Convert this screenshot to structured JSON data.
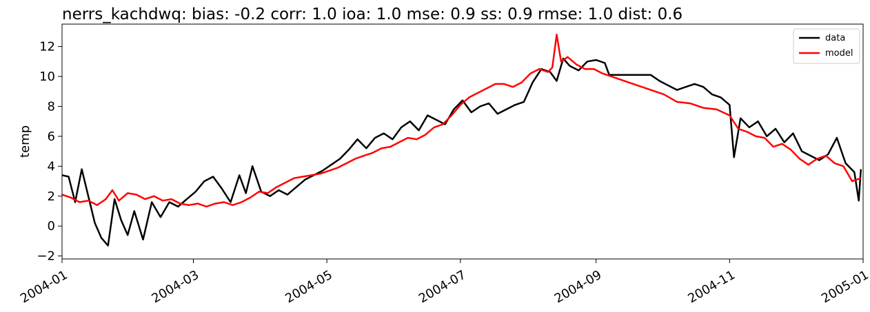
{
  "chart_data": {
    "type": "line",
    "title": "nerrs_kachdwq: bias: -0.2  corr: 1.0  ioa: 1.0  mse: 0.9  ss: 0.9  rmse: 1.0  dist: 0.6",
    "xlabel": "",
    "ylabel": "temp",
    "xlim": [
      "2004-01-01",
      "2005-01-01"
    ],
    "ylim": [
      -2.2,
      13.5
    ],
    "x_ticks": [
      "2004-01",
      "2004-03",
      "2004-05",
      "2004-07",
      "2004-09",
      "2004-11",
      "2005-01"
    ],
    "y_ticks": [
      -2,
      0,
      2,
      4,
      6,
      8,
      10,
      12
    ],
    "grid": false,
    "legend": {
      "position": "top-right"
    },
    "series": [
      {
        "name": "data",
        "color": "#000000",
        "points": [
          [
            "2004-01-01",
            3.4
          ],
          [
            "2004-01-04",
            3.3
          ],
          [
            "2004-01-07",
            1.6
          ],
          [
            "2004-01-10",
            3.8
          ],
          [
            "2004-01-13",
            2.0
          ],
          [
            "2004-01-16",
            0.2
          ],
          [
            "2004-01-19",
            -0.8
          ],
          [
            "2004-01-22",
            -1.3
          ],
          [
            "2004-01-25",
            1.8
          ],
          [
            "2004-01-28",
            0.4
          ],
          [
            "2004-01-31",
            -0.6
          ],
          [
            "2004-02-03",
            1.0
          ],
          [
            "2004-02-07",
            -0.9
          ],
          [
            "2004-02-11",
            1.6
          ],
          [
            "2004-02-15",
            0.6
          ],
          [
            "2004-02-19",
            1.6
          ],
          [
            "2004-02-23",
            1.3
          ],
          [
            "2004-02-27",
            1.8
          ],
          [
            "2004-03-02",
            2.3
          ],
          [
            "2004-03-06",
            3.0
          ],
          [
            "2004-03-10",
            3.3
          ],
          [
            "2004-03-14",
            2.5
          ],
          [
            "2004-03-18",
            1.6
          ],
          [
            "2004-03-22",
            3.4
          ],
          [
            "2004-03-25",
            2.2
          ],
          [
            "2004-03-28",
            4.0
          ],
          [
            "2004-04-01",
            2.3
          ],
          [
            "2004-04-05",
            2.0
          ],
          [
            "2004-04-09",
            2.4
          ],
          [
            "2004-04-13",
            2.1
          ],
          [
            "2004-04-17",
            2.6
          ],
          [
            "2004-04-21",
            3.1
          ],
          [
            "2004-04-25",
            3.4
          ],
          [
            "2004-04-29",
            3.7
          ],
          [
            "2004-05-03",
            4.1
          ],
          [
            "2004-05-07",
            4.5
          ],
          [
            "2004-05-11",
            5.1
          ],
          [
            "2004-05-15",
            5.8
          ],
          [
            "2004-05-19",
            5.2
          ],
          [
            "2004-05-23",
            5.9
          ],
          [
            "2004-05-27",
            6.2
          ],
          [
            "2004-05-31",
            5.8
          ],
          [
            "2004-06-04",
            6.6
          ],
          [
            "2004-06-08",
            7.0
          ],
          [
            "2004-06-12",
            6.4
          ],
          [
            "2004-06-16",
            7.4
          ],
          [
            "2004-06-20",
            7.1
          ],
          [
            "2004-06-24",
            6.8
          ],
          [
            "2004-06-28",
            7.8
          ],
          [
            "2004-07-02",
            8.4
          ],
          [
            "2004-07-06",
            7.6
          ],
          [
            "2004-07-10",
            8.0
          ],
          [
            "2004-07-14",
            8.2
          ],
          [
            "2004-07-18",
            7.5
          ],
          [
            "2004-07-22",
            7.8
          ],
          [
            "2004-07-26",
            8.1
          ],
          [
            "2004-07-30",
            8.3
          ],
          [
            "2004-08-03",
            9.6
          ],
          [
            "2004-08-07",
            10.5
          ],
          [
            "2004-08-11",
            10.3
          ],
          [
            "2004-08-14",
            9.7
          ],
          [
            "2004-08-17",
            11.2
          ],
          [
            "2004-08-20",
            10.7
          ],
          [
            "2004-08-24",
            10.4
          ],
          [
            "2004-08-28",
            11.0
          ],
          [
            "2004-09-01",
            11.1
          ],
          [
            "2004-09-05",
            10.9
          ],
          [
            "2004-09-07",
            10.1
          ],
          [
            "2004-09-26",
            10.1
          ],
          [
            "2004-09-30",
            9.7
          ],
          [
            "2004-10-04",
            9.4
          ],
          [
            "2004-10-08",
            9.1
          ],
          [
            "2004-10-12",
            9.3
          ],
          [
            "2004-10-16",
            9.5
          ],
          [
            "2004-10-20",
            9.3
          ],
          [
            "2004-10-24",
            8.8
          ],
          [
            "2004-10-28",
            8.6
          ],
          [
            "2004-11-01",
            8.1
          ],
          [
            "2004-11-03",
            4.6
          ],
          [
            "2004-11-06",
            7.2
          ],
          [
            "2004-11-10",
            6.6
          ],
          [
            "2004-11-14",
            7.0
          ],
          [
            "2004-11-18",
            6.0
          ],
          [
            "2004-11-22",
            6.5
          ],
          [
            "2004-11-26",
            5.6
          ],
          [
            "2004-11-30",
            6.2
          ],
          [
            "2004-12-04",
            5.0
          ],
          [
            "2004-12-08",
            4.7
          ],
          [
            "2004-12-12",
            4.4
          ],
          [
            "2004-12-16",
            4.8
          ],
          [
            "2004-12-20",
            5.9
          ],
          [
            "2004-12-24",
            4.2
          ],
          [
            "2004-12-28",
            3.6
          ],
          [
            "2004-12-30",
            1.7
          ],
          [
            "2004-12-31",
            3.8
          ]
        ]
      },
      {
        "name": "model",
        "color": "#ff0000",
        "points": [
          [
            "2004-01-01",
            2.1
          ],
          [
            "2004-01-05",
            1.9
          ],
          [
            "2004-01-09",
            1.6
          ],
          [
            "2004-01-13",
            1.7
          ],
          [
            "2004-01-17",
            1.4
          ],
          [
            "2004-01-21",
            1.8
          ],
          [
            "2004-01-24",
            2.4
          ],
          [
            "2004-01-27",
            1.7
          ],
          [
            "2004-01-31",
            2.2
          ],
          [
            "2004-02-04",
            2.1
          ],
          [
            "2004-02-08",
            1.8
          ],
          [
            "2004-02-12",
            2.0
          ],
          [
            "2004-02-16",
            1.7
          ],
          [
            "2004-02-20",
            1.8
          ],
          [
            "2004-02-24",
            1.5
          ],
          [
            "2004-02-28",
            1.4
          ],
          [
            "2004-03-03",
            1.5
          ],
          [
            "2004-03-07",
            1.3
          ],
          [
            "2004-03-11",
            1.5
          ],
          [
            "2004-03-15",
            1.6
          ],
          [
            "2004-03-19",
            1.4
          ],
          [
            "2004-03-23",
            1.6
          ],
          [
            "2004-03-27",
            1.9
          ],
          [
            "2004-03-31",
            2.3
          ],
          [
            "2004-04-04",
            2.2
          ],
          [
            "2004-04-08",
            2.6
          ],
          [
            "2004-04-12",
            2.9
          ],
          [
            "2004-04-16",
            3.2
          ],
          [
            "2004-04-20",
            3.3
          ],
          [
            "2004-04-24",
            3.4
          ],
          [
            "2004-04-28",
            3.5
          ],
          [
            "2004-05-02",
            3.7
          ],
          [
            "2004-05-06",
            3.9
          ],
          [
            "2004-05-10",
            4.2
          ],
          [
            "2004-05-14",
            4.5
          ],
          [
            "2004-05-18",
            4.7
          ],
          [
            "2004-05-22",
            4.9
          ],
          [
            "2004-05-26",
            5.2
          ],
          [
            "2004-05-30",
            5.3
          ],
          [
            "2004-06-03",
            5.6
          ],
          [
            "2004-06-07",
            5.9
          ],
          [
            "2004-06-11",
            5.8
          ],
          [
            "2004-06-15",
            6.1
          ],
          [
            "2004-06-19",
            6.6
          ],
          [
            "2004-06-23",
            6.8
          ],
          [
            "2004-06-27",
            7.4
          ],
          [
            "2004-07-01",
            8.1
          ],
          [
            "2004-07-05",
            8.6
          ],
          [
            "2004-07-09",
            8.9
          ],
          [
            "2004-07-13",
            9.2
          ],
          [
            "2004-07-17",
            9.5
          ],
          [
            "2004-07-21",
            9.5
          ],
          [
            "2004-07-25",
            9.3
          ],
          [
            "2004-07-29",
            9.6
          ],
          [
            "2004-08-02",
            10.2
          ],
          [
            "2004-08-06",
            10.5
          ],
          [
            "2004-08-10",
            10.3
          ],
          [
            "2004-08-12",
            10.6
          ],
          [
            "2004-08-14",
            12.8
          ],
          [
            "2004-08-16",
            11.0
          ],
          [
            "2004-08-19",
            11.3
          ],
          [
            "2004-08-23",
            10.8
          ],
          [
            "2004-08-27",
            10.5
          ],
          [
            "2004-08-31",
            10.5
          ],
          [
            "2004-09-04",
            10.2
          ],
          [
            "2004-09-10",
            9.9
          ],
          [
            "2004-09-18",
            9.5
          ],
          [
            "2004-09-26",
            9.1
          ],
          [
            "2004-10-02",
            8.8
          ],
          [
            "2004-10-08",
            8.3
          ],
          [
            "2004-10-14",
            8.2
          ],
          [
            "2004-10-20",
            7.9
          ],
          [
            "2004-10-26",
            7.8
          ],
          [
            "2004-11-01",
            7.4
          ],
          [
            "2004-11-05",
            6.5
          ],
          [
            "2004-11-09",
            6.3
          ],
          [
            "2004-11-13",
            6.0
          ],
          [
            "2004-11-17",
            5.9
          ],
          [
            "2004-11-21",
            5.3
          ],
          [
            "2004-11-25",
            5.5
          ],
          [
            "2004-11-29",
            5.1
          ],
          [
            "2004-12-03",
            4.5
          ],
          [
            "2004-12-07",
            4.1
          ],
          [
            "2004-12-11",
            4.5
          ],
          [
            "2004-12-15",
            4.7
          ],
          [
            "2004-12-19",
            4.2
          ],
          [
            "2004-12-23",
            4.0
          ],
          [
            "2004-12-27",
            3.0
          ],
          [
            "2004-12-31",
            3.2
          ]
        ]
      }
    ]
  }
}
